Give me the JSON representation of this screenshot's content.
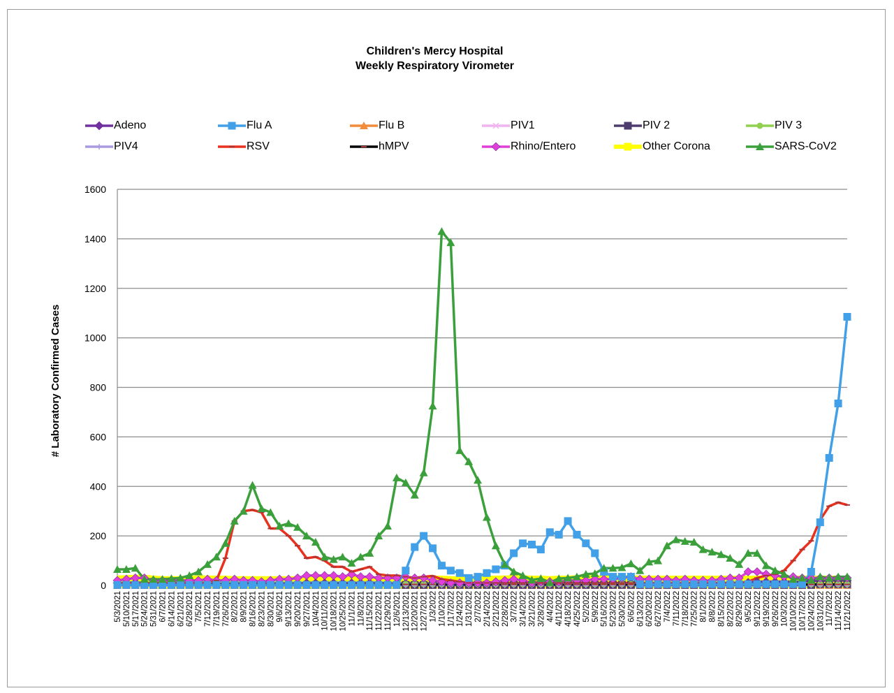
{
  "chart_data": {
    "type": "line",
    "title": "Children's Mercy Hospital",
    "subtitle": "Weekly Respiratory Virometer",
    "ylabel": "# Laboratory Confirmed Cases",
    "xlabel": "",
    "ylim": [
      0,
      1600
    ],
    "yticks": [
      "0",
      "200",
      "400",
      "600",
      "800",
      "1000",
      "1200",
      "1400",
      "1600"
    ],
    "grid": true,
    "legend_placement": "top",
    "categories": [
      "5/3/2021",
      "5/10/2021",
      "5/17/2021",
      "5/24/2021",
      "5/31/2021",
      "6/7/2021",
      "6/14/2021",
      "6/21/2021",
      "6/28/2021",
      "7/5/2021",
      "7/12/2021",
      "7/19/2021",
      "7/26/2021",
      "8/2/2021",
      "8/9/2021",
      "8/16/2021",
      "8/23/2021",
      "8/30/2021",
      "9/6/2021",
      "9/13/2021",
      "9/20/2021",
      "9/27/2021",
      "10/4/2021",
      "10/11/2021",
      "10/18/2021",
      "10/25/2021",
      "11/1/2021",
      "11/8/2021",
      "11/15/2021",
      "11/22/2021",
      "11/29/2021",
      "12/6/2021",
      "12/13/2021",
      "12/20/2021",
      "12/27/2021",
      "1/3/2022",
      "1/10/2022",
      "1/17/2022",
      "1/24/2022",
      "1/31/2022",
      "2/7/2022",
      "2/14/2022",
      "2/21/2022",
      "2/28/2022",
      "3/7/2022",
      "3/14/2022",
      "3/21/2022",
      "3/28/2022",
      "4/4/2022",
      "4/11/2022",
      "4/18/2022",
      "4/25/2022",
      "5/2/2022",
      "5/9/2022",
      "5/16/2022",
      "5/23/2022",
      "5/30/2022",
      "6/6/2022",
      "6/13/2022",
      "6/20/2022",
      "6/27/2022",
      "7/4/2022",
      "7/11/2022",
      "7/18/2022",
      "7/25/2022",
      "8/1/2022",
      "8/8/2022",
      "8/15/2022",
      "8/22/2022",
      "8/29/2022",
      "9/5/2022",
      "9/12/2022",
      "9/19/2022",
      "9/26/2022",
      "10/3/2022",
      "10/10/2022",
      "10/17/2022",
      "10/24/2022",
      "10/31/2022",
      "11/7/2022",
      "11/14/2022",
      "11/21/2022"
    ],
    "series": [
      {
        "name": "Adeno",
        "color": "#7030a0",
        "marker": "diamond",
        "values": [
          10,
          10,
          12,
          10,
          8,
          8,
          8,
          8,
          8,
          8,
          10,
          10,
          10,
          10,
          10,
          10,
          8,
          8,
          8,
          8,
          8,
          10,
          10,
          10,
          10,
          10,
          10,
          10,
          10,
          10,
          8,
          8,
          8,
          8,
          8,
          8,
          6,
          6,
          6,
          6,
          6,
          6,
          6,
          6,
          6,
          6,
          6,
          6,
          6,
          6,
          6,
          6,
          6,
          8,
          8,
          8,
          8,
          8,
          8,
          8,
          8,
          8,
          8,
          8,
          8,
          8,
          8,
          8,
          10,
          10,
          12,
          15,
          15,
          15,
          15,
          15,
          15,
          18,
          18,
          20,
          20,
          20
        ]
      },
      {
        "name": "Flu A",
        "color": "#41a0e8",
        "marker": "square",
        "values": [
          2,
          2,
          2,
          2,
          2,
          2,
          2,
          2,
          2,
          2,
          2,
          2,
          2,
          2,
          2,
          2,
          2,
          2,
          2,
          2,
          2,
          2,
          2,
          2,
          2,
          2,
          2,
          2,
          2,
          2,
          2,
          2,
          60,
          155,
          200,
          150,
          80,
          60,
          50,
          30,
          35,
          50,
          65,
          80,
          130,
          170,
          165,
          145,
          215,
          205,
          260,
          205,
          170,
          130,
          55,
          35,
          35,
          35,
          5,
          5,
          5,
          5,
          5,
          5,
          5,
          5,
          5,
          5,
          5,
          5,
          5,
          5,
          5,
          5,
          5,
          5,
          5,
          55,
          255,
          515,
          735,
          1085
        ]
      },
      {
        "name": "Flu B",
        "color": "#f08c3c",
        "marker": "triangle",
        "values": [
          0,
          0,
          0,
          0,
          0,
          0,
          0,
          0,
          0,
          0,
          0,
          0,
          0,
          0,
          0,
          0,
          0,
          0,
          0,
          0,
          0,
          0,
          0,
          0,
          0,
          0,
          0,
          0,
          0,
          0,
          0,
          0,
          0,
          0,
          0,
          0,
          0,
          0,
          0,
          0,
          0,
          0,
          0,
          0,
          0,
          0,
          0,
          0,
          0,
          0,
          0,
          0,
          0,
          0,
          0,
          0,
          0,
          0,
          0,
          0,
          0,
          0,
          0,
          0,
          0,
          0,
          0,
          0,
          0,
          0,
          0,
          0,
          0,
          0,
          0,
          0,
          0,
          0,
          0,
          0,
          0,
          0
        ]
      },
      {
        "name": "PIV1",
        "color": "#f0b4f0",
        "marker": "x",
        "values": [
          0,
          0,
          0,
          0,
          0,
          0,
          0,
          0,
          0,
          0,
          0,
          0,
          0,
          0,
          0,
          0,
          0,
          0,
          0,
          0,
          0,
          0,
          0,
          0,
          0,
          0,
          0,
          0,
          0,
          0,
          0,
          0,
          0,
          0,
          0,
          0,
          0,
          0,
          0,
          0,
          0,
          0,
          0,
          0,
          0,
          0,
          0,
          0,
          0,
          0,
          0,
          0,
          0,
          0,
          0,
          0,
          0,
          0,
          0,
          0,
          0,
          0,
          0,
          0,
          0,
          0,
          0,
          0,
          0,
          0,
          0,
          0,
          0,
          0,
          0,
          0,
          0,
          0,
          0,
          0,
          0,
          0
        ]
      },
      {
        "name": "PIV 2",
        "color": "#4f3c6e",
        "marker": "square",
        "values": [
          2,
          2,
          2,
          2,
          2,
          2,
          2,
          2,
          2,
          2,
          2,
          2,
          2,
          2,
          2,
          2,
          2,
          2,
          2,
          2,
          2,
          2,
          2,
          2,
          2,
          2,
          2,
          2,
          2,
          2,
          2,
          2,
          2,
          2,
          2,
          2,
          2,
          2,
          2,
          2,
          2,
          2,
          2,
          2,
          2,
          2,
          2,
          2,
          2,
          2,
          2,
          2,
          2,
          2,
          2,
          2,
          2,
          2,
          2,
          2,
          2,
          2,
          2,
          2,
          2,
          2,
          2,
          2,
          2,
          2,
          2,
          2,
          2,
          2,
          2,
          2,
          2,
          2,
          5,
          5,
          5,
          5
        ]
      },
      {
        "name": "PIV 3",
        "color": "#92d050",
        "marker": "circle",
        "values": [
          5,
          5,
          5,
          8,
          10,
          10,
          12,
          15,
          15,
          15,
          15,
          12,
          10,
          8,
          8,
          6,
          6,
          5,
          5,
          5,
          5,
          5,
          5,
          5,
          5,
          5,
          5,
          5,
          5,
          5,
          5,
          5,
          5,
          5,
          5,
          5,
          5,
          5,
          5,
          5,
          5,
          5,
          5,
          5,
          5,
          5,
          5,
          5,
          5,
          5,
          5,
          5,
          5,
          5,
          5,
          5,
          5,
          5,
          5,
          5,
          5,
          5,
          5,
          5,
          5,
          5,
          5,
          5,
          5,
          5,
          5,
          5,
          5,
          5,
          5,
          5,
          5,
          5,
          5,
          5,
          5,
          5
        ]
      },
      {
        "name": "PIV4",
        "color": "#a99ae0",
        "marker": "plus",
        "values": [
          0,
          0,
          0,
          0,
          0,
          0,
          0,
          0,
          0,
          0,
          0,
          0,
          0,
          0,
          0,
          0,
          0,
          0,
          0,
          0,
          0,
          0,
          0,
          0,
          0,
          0,
          0,
          0,
          0,
          0,
          0,
          0,
          0,
          0,
          0,
          0,
          0,
          0,
          0,
          0,
          0,
          0,
          0,
          0,
          0,
          0,
          0,
          0,
          0,
          0,
          0,
          0,
          0,
          0,
          0,
          0,
          0,
          0,
          0,
          0,
          0,
          0,
          0,
          0,
          0,
          0,
          0,
          0,
          0,
          0,
          0,
          0,
          0,
          0,
          0,
          0,
          0,
          0,
          0,
          0,
          0,
          0
        ]
      },
      {
        "name": "RSV",
        "color": "#e8311f",
        "marker": "dash",
        "values": [
          10,
          10,
          10,
          10,
          10,
          10,
          10,
          10,
          10,
          10,
          10,
          20,
          110,
          260,
          300,
          305,
          295,
          230,
          230,
          200,
          160,
          110,
          115,
          100,
          75,
          75,
          55,
          65,
          75,
          45,
          40,
          40,
          35,
          30,
          35,
          38,
          25,
          20,
          15,
          10,
          10,
          10,
          10,
          10,
          10,
          10,
          10,
          10,
          10,
          10,
          10,
          10,
          10,
          10,
          10,
          10,
          10,
          10,
          10,
          10,
          10,
          10,
          10,
          10,
          10,
          10,
          10,
          10,
          10,
          10,
          15,
          30,
          40,
          45,
          60,
          100,
          145,
          180,
          265,
          320,
          335,
          325
        ]
      },
      {
        "name": "hMPV",
        "color": "#000000",
        "marker": "dash",
        "values": [
          4,
          4,
          4,
          4,
          4,
          4,
          4,
          4,
          4,
          4,
          4,
          4,
          4,
          4,
          4,
          4,
          4,
          4,
          4,
          4,
          4,
          4,
          4,
          4,
          4,
          4,
          4,
          4,
          4,
          4,
          4,
          4,
          4,
          4,
          4,
          4,
          4,
          4,
          4,
          4,
          4,
          4,
          4,
          4,
          4,
          4,
          4,
          4,
          4,
          4,
          4,
          4,
          4,
          4,
          4,
          4,
          4,
          4,
          4,
          4,
          4,
          4,
          4,
          4,
          4,
          4,
          4,
          4,
          4,
          4,
          4,
          4,
          4,
          4,
          4,
          4,
          4,
          4,
          4,
          4,
          4,
          4
        ]
      },
      {
        "name": "Rhino/Entero",
        "color": "#e040d8",
        "marker": "diamond",
        "values": [
          20,
          25,
          30,
          30,
          20,
          20,
          20,
          20,
          20,
          20,
          25,
          20,
          20,
          25,
          20,
          20,
          15,
          20,
          25,
          25,
          30,
          40,
          40,
          40,
          40,
          35,
          45,
          35,
          35,
          30,
          30,
          30,
          35,
          30,
          30,
          20,
          15,
          10,
          10,
          10,
          10,
          10,
          15,
          20,
          25,
          20,
          10,
          15,
          15,
          15,
          20,
          20,
          20,
          25,
          25,
          25,
          30,
          35,
          25,
          25,
          25,
          25,
          20,
          25,
          20,
          20,
          20,
          25,
          30,
          30,
          55,
          55,
          45,
          40,
          35,
          35,
          30,
          30,
          30,
          30,
          30,
          30
        ]
      },
      {
        "name": "Other Corona",
        "color": "#ffff00",
        "marker": "square",
        "values": [
          15,
          16,
          18,
          18,
          14,
          12,
          12,
          12,
          14,
          15,
          15,
          14,
          14,
          12,
          12,
          12,
          12,
          12,
          12,
          12,
          12,
          12,
          12,
          12,
          12,
          12,
          12,
          12,
          12,
          12,
          12,
          12,
          12,
          12,
          12,
          14,
          14,
          12,
          12,
          12,
          14,
          14,
          14,
          15,
          16,
          16,
          14,
          14,
          12,
          14,
          14,
          16,
          16,
          16,
          16,
          16,
          16,
          16,
          15,
          14,
          14,
          14,
          14,
          14,
          14,
          14,
          14,
          14,
          14,
          14,
          14,
          14,
          14,
          14,
          14,
          14,
          14,
          14,
          14,
          14,
          14,
          14
        ]
      },
      {
        "name": "SARS-CoV2",
        "color": "#3ba03b",
        "marker": "triangle",
        "values": [
          65,
          65,
          70,
          25,
          25,
          25,
          28,
          30,
          40,
          55,
          85,
          115,
          170,
          260,
          300,
          405,
          310,
          295,
          240,
          250,
          235,
          200,
          175,
          115,
          105,
          115,
          90,
          115,
          130,
          200,
          240,
          435,
          415,
          365,
          455,
          725,
          1430,
          1385,
          545,
          500,
          425,
          275,
          160,
          85,
          55,
          40,
          22,
          28,
          12,
          28,
          30,
          35,
          45,
          48,
          70,
          70,
          72,
          88,
          60,
          95,
          100,
          160,
          185,
          178,
          175,
          145,
          135,
          125,
          110,
          85,
          130,
          130,
          80,
          60,
          45,
          25,
          30,
          22,
          35,
          30,
          35,
          35
        ]
      }
    ]
  }
}
